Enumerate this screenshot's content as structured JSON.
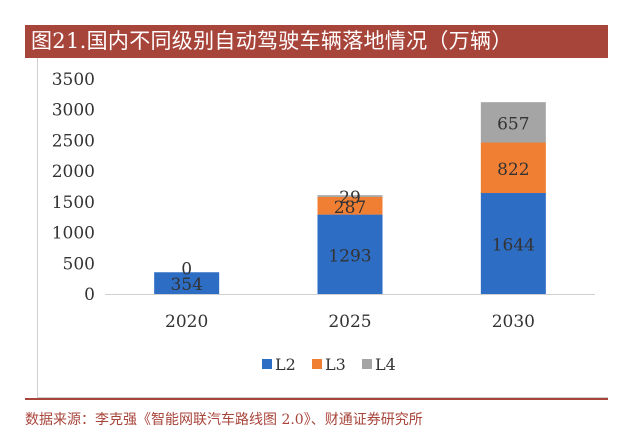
{
  "header": {
    "title": "图21.国内不同级别自动驾驶车辆落地情况（万辆）"
  },
  "footer": {
    "source": "数据来源：李克强《智能网联汽车路线图 2.0》、财通证券研究所"
  },
  "colors": {
    "accent": "#A8453B",
    "L2": "#2E6DC4",
    "L3": "#F07F34",
    "L4": "#A5A5A5"
  },
  "chart_data": {
    "type": "bar",
    "stacked": true,
    "categories": [
      "2020",
      "2025",
      "2030"
    ],
    "series": [
      {
        "name": "L2",
        "values": [
          354,
          1293,
          1644
        ],
        "color": "#2E6DC4"
      },
      {
        "name": "L3",
        "values": [
          0,
          287,
          822
        ],
        "color": "#F07F34"
      },
      {
        "name": "L4",
        "values": [
          0,
          29,
          657
        ],
        "color": "#A5A5A5"
      }
    ],
    "data_labels": [
      [
        "354",
        "1293",
        "1644"
      ],
      [
        "0",
        "287",
        "822"
      ],
      [
        "",
        "29",
        "657"
      ]
    ],
    "y_ticks": [
      "0",
      "500",
      "1000",
      "1500",
      "2000",
      "2500",
      "3000",
      "3500"
    ],
    "ylim": [
      0,
      3500
    ],
    "grid": false,
    "legend_position": "bottom"
  }
}
